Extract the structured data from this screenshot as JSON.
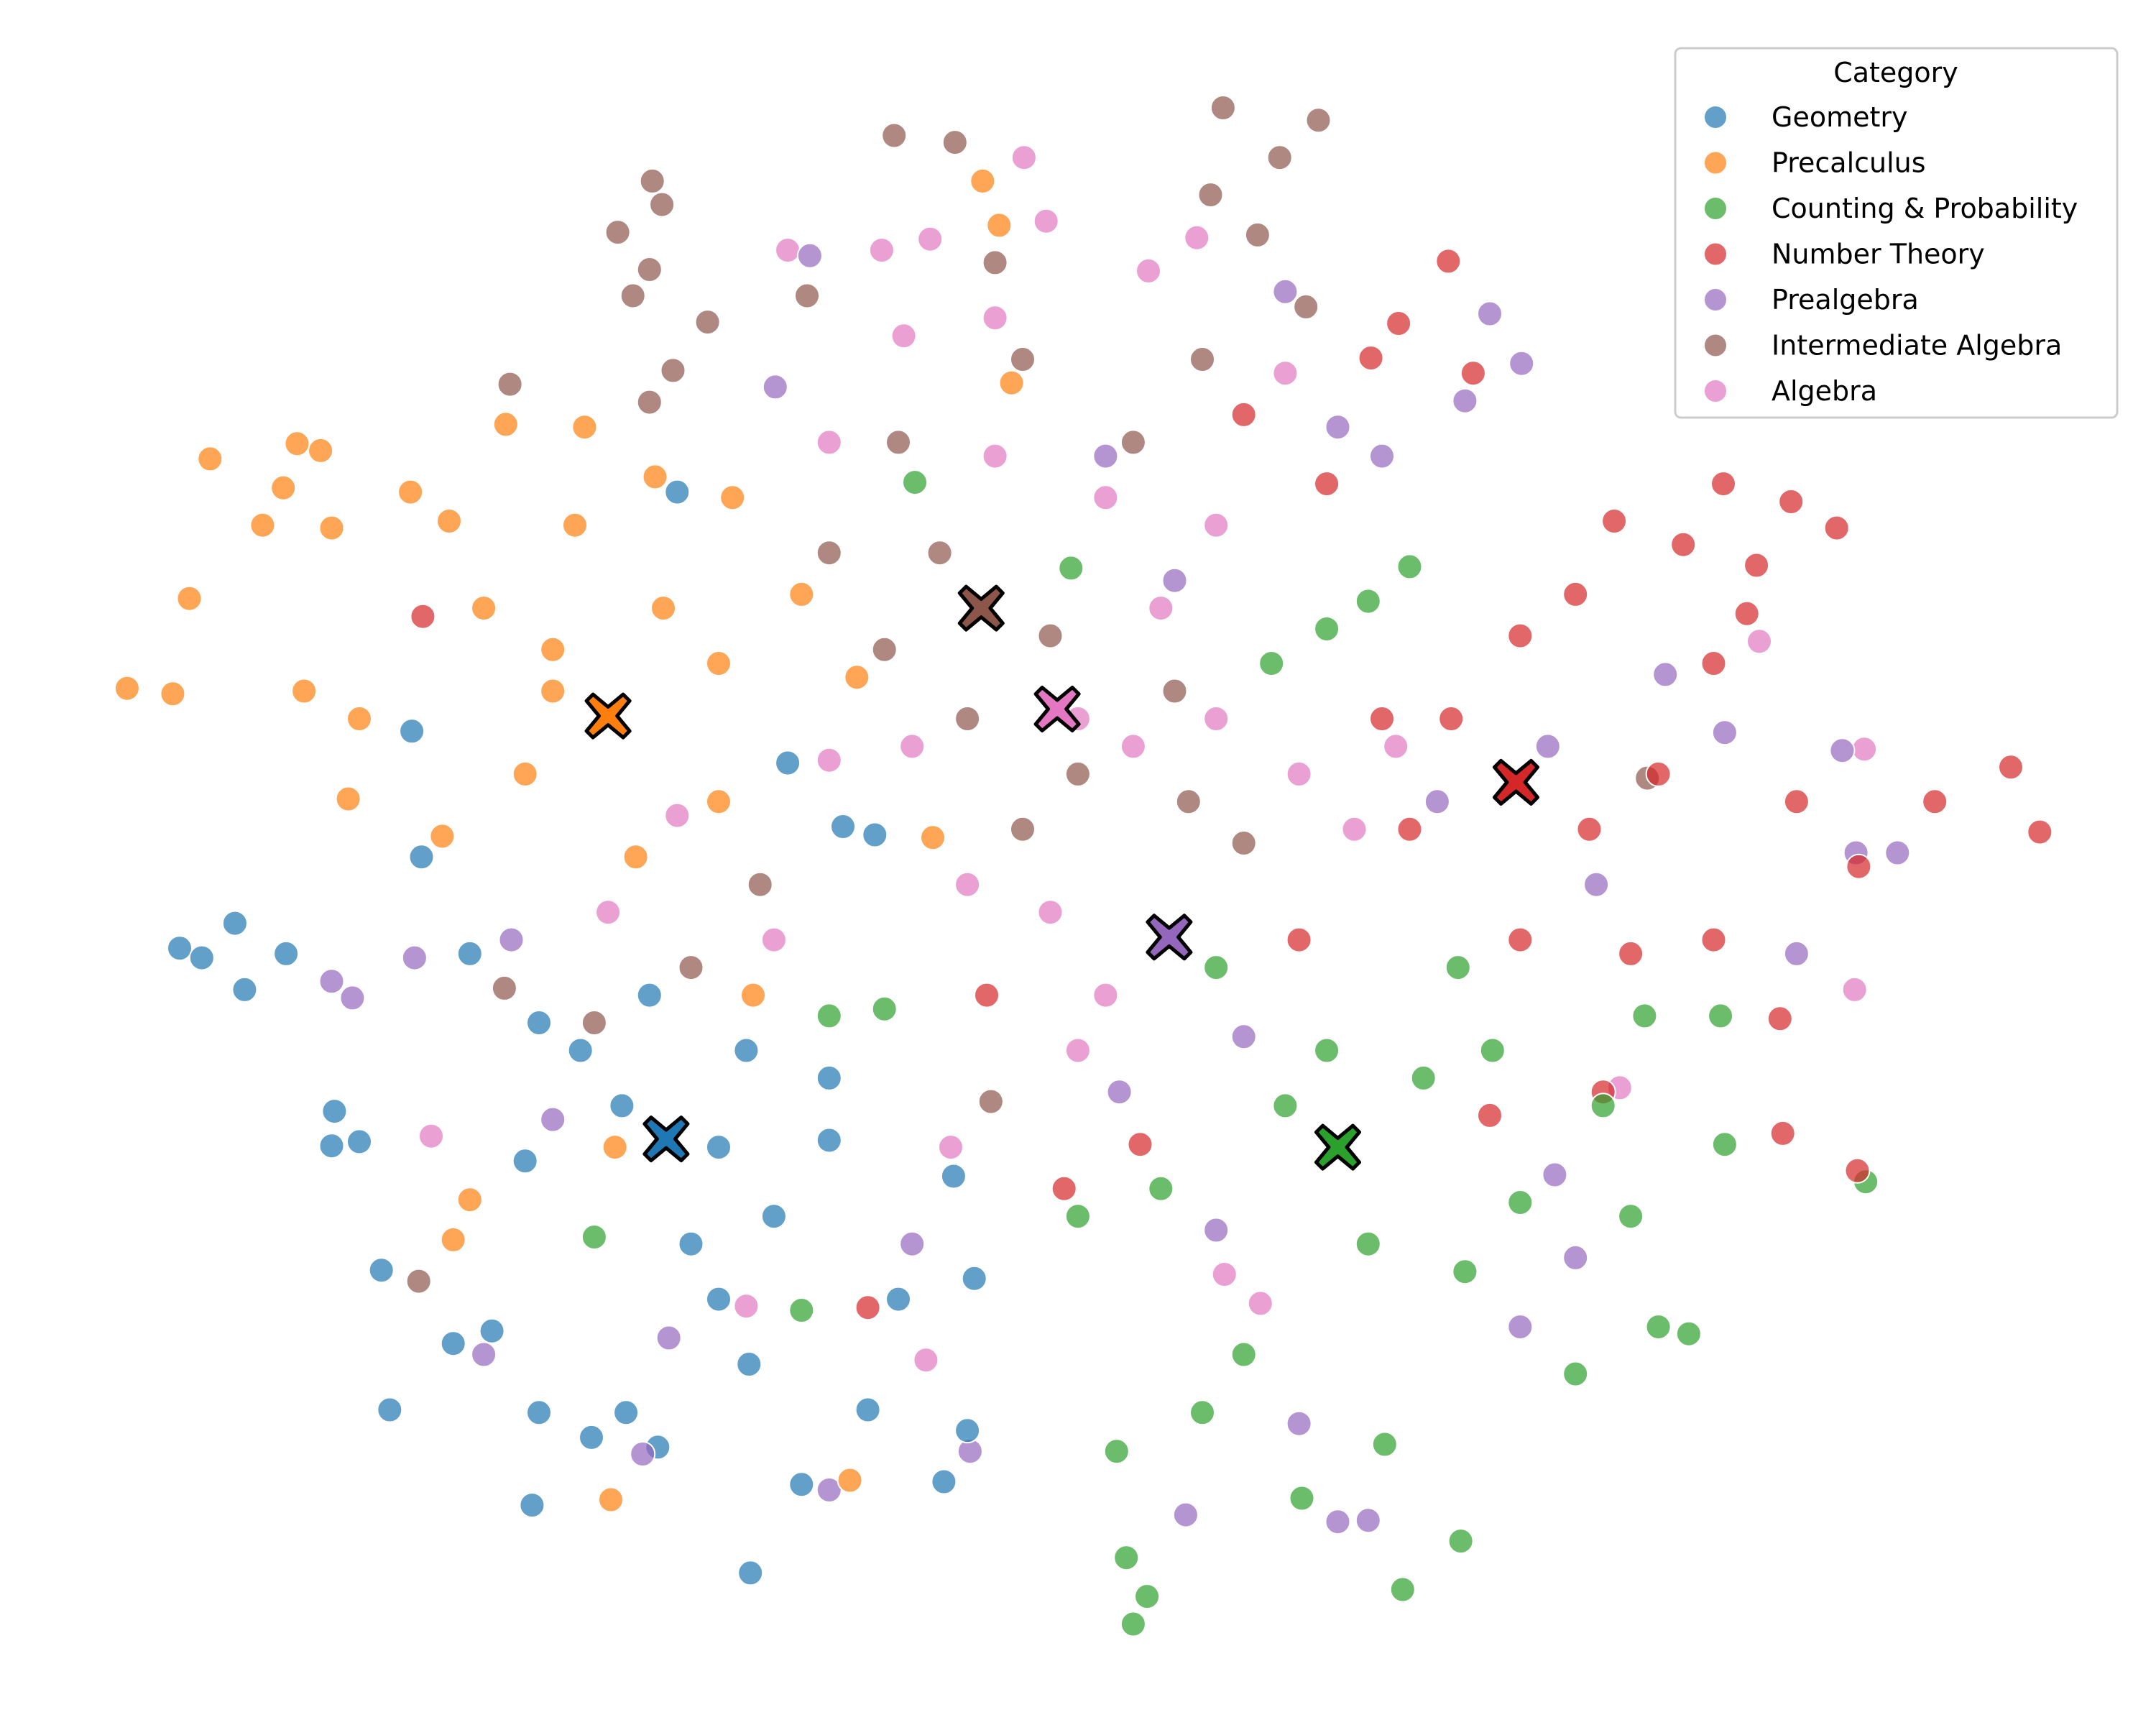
{
  "chart_data": {
    "type": "scatter",
    "title": "",
    "xlabel": "",
    "ylabel": "",
    "axes_visible": false,
    "grid": false,
    "xlim": [
      -78,
      78
    ],
    "ylim": [
      -62,
      62
    ],
    "legend": {
      "title": "Category",
      "placement": "top-right"
    },
    "marker_alpha": 0.7,
    "centroid_marker": "X",
    "series": [
      {
        "name": "Geometry",
        "color": "#1f77b4",
        "centroid": [
          -29.8,
          -19.9
        ],
        "points": [
          [
            -65,
            -6.1
          ],
          [
            -63.4,
            -6.8
          ],
          [
            -61,
            -4.3
          ],
          [
            -60.3,
            -9.1
          ],
          [
            -57.3,
            -6.5
          ],
          [
            -54,
            -20.4
          ],
          [
            -53.8,
            -17.9
          ],
          [
            -52,
            -20.1
          ],
          [
            -50.4,
            -29.4
          ],
          [
            -49.8,
            -39.5
          ],
          [
            -47.5,
            0.5
          ],
          [
            -48.2,
            9.6
          ],
          [
            -45.2,
            -34.7
          ],
          [
            -42.4,
            -33.8
          ],
          [
            -39.5,
            -46.4
          ],
          [
            -39,
            -39.7
          ],
          [
            -35.2,
            -41.5
          ],
          [
            -32.7,
            -39.7
          ],
          [
            -30.4,
            -42.2
          ],
          [
            -23.7,
            -51.3
          ],
          [
            -23.8,
            -36.2
          ],
          [
            -21,
            7.3
          ],
          [
            -17,
            2.7
          ],
          [
            -14.7,
            2.1
          ],
          [
            -15.2,
            -39.5
          ],
          [
            -20,
            -44.9
          ],
          [
            -9.7,
            -44.7
          ],
          [
            -8,
            -41
          ],
          [
            -7.5,
            -30
          ],
          [
            -9,
            -22.6
          ],
          [
            -26,
            -20.5
          ],
          [
            -22,
            -25.5
          ],
          [
            -28,
            -27.5
          ],
          [
            -24,
            -13.5
          ],
          [
            -36,
            -13.5
          ],
          [
            -40,
            -21.5
          ],
          [
            -33,
            -17.5
          ],
          [
            -18,
            -15.5
          ],
          [
            -13,
            -31.5
          ],
          [
            -29,
            26.9
          ],
          [
            -44,
            -6.5
          ],
          [
            -39,
            -11.5
          ],
          [
            -31,
            -9.5
          ],
          [
            -26,
            -31.5
          ],
          [
            -18,
            -20
          ]
        ]
      },
      {
        "name": "Precalculus",
        "color": "#ff7f0e",
        "centroid": [
          -34,
          10.7
        ],
        "points": [
          [
            -68.8,
            12.7
          ],
          [
            -65.5,
            12.3
          ],
          [
            -64.3,
            19.2
          ],
          [
            -62.8,
            29.3
          ],
          [
            -59,
            24.5
          ],
          [
            -56.5,
            30.4
          ],
          [
            -54.8,
            29.9
          ],
          [
            -57.5,
            27.2
          ],
          [
            -54,
            24.3
          ],
          [
            -52.8,
            4.7
          ],
          [
            -48.3,
            26.9
          ],
          [
            -45.5,
            24.8
          ],
          [
            -41.4,
            31.8
          ],
          [
            -35.7,
            31.6
          ],
          [
            -36.4,
            24.5
          ],
          [
            -30.6,
            28
          ],
          [
            -25,
            26.5
          ],
          [
            -46,
            2
          ],
          [
            -44,
            -24.3
          ],
          [
            -45.2,
            -27.2
          ],
          [
            -33.8,
            -46
          ],
          [
            -33.5,
            -20.5
          ],
          [
            -23.5,
            -9.5
          ],
          [
            -6.9,
            49.4
          ],
          [
            -5.7,
            46.2
          ],
          [
            -4.8,
            34.8
          ],
          [
            -10.5,
            1.9
          ],
          [
            -16.5,
            -44.6
          ],
          [
            -43,
            18.5
          ],
          [
            -38,
            15.5
          ],
          [
            -30,
            18.5
          ],
          [
            -26,
            14.5
          ],
          [
            -20,
            19.5
          ],
          [
            -16,
            13.5
          ],
          [
            -52,
            10.5
          ],
          [
            -56,
            12.5
          ],
          [
            -40,
            6.5
          ],
          [
            -32,
            0.5
          ],
          [
            -26,
            4.5
          ],
          [
            -38,
            12.5
          ]
        ]
      },
      {
        "name": "Counting & Probability",
        "color": "#2ca02c",
        "centroid": [
          18.8,
          -20.5
        ],
        "points": [
          [
            4,
            -55
          ],
          [
            3.5,
            -50.2
          ],
          [
            5,
            -53
          ],
          [
            2.8,
            -42.5
          ],
          [
            9,
            -39.7
          ],
          [
            16.2,
            -45.9
          ],
          [
            23.5,
            -52.5
          ],
          [
            27.7,
            -49
          ],
          [
            22.2,
            -42
          ],
          [
            36,
            -36.9
          ],
          [
            44.2,
            -34
          ],
          [
            46.8,
            -20.3
          ],
          [
            57,
            -23
          ],
          [
            46.5,
            -11
          ],
          [
            41,
            -11
          ],
          [
            24,
            21.5
          ],
          [
            21,
            19
          ],
          [
            18,
            17
          ],
          [
            14,
            14.5
          ],
          [
            -11.8,
            27.6
          ],
          [
            -0.5,
            21.4
          ],
          [
            -18,
            -11
          ],
          [
            -14,
            -10.5
          ],
          [
            -35,
            -27
          ],
          [
            -20,
            -32.3
          ],
          [
            0,
            -25.5
          ],
          [
            6,
            -23.5
          ],
          [
            12,
            -35.5
          ],
          [
            21,
            -27.5
          ],
          [
            28,
            -29.5
          ],
          [
            32,
            -24.5
          ],
          [
            30,
            -13.5
          ],
          [
            25,
            -15.5
          ],
          [
            18,
            -13.5
          ],
          [
            38,
            -17.5
          ],
          [
            42,
            -33.5
          ],
          [
            27.5,
            -7.5
          ],
          [
            40,
            -25.5
          ],
          [
            15,
            -17.5
          ],
          [
            10,
            -7.5
          ]
        ]
      },
      {
        "name": "Number Theory",
        "color": "#d62728",
        "centroid": [
          31.7,
          5.9
        ],
        "points": [
          [
            26.8,
            43.6
          ],
          [
            23.2,
            39.1
          ],
          [
            21.2,
            36.6
          ],
          [
            28.6,
            35.5
          ],
          [
            46.7,
            27.5
          ],
          [
            51.6,
            26.2
          ],
          [
            54.9,
            24.3
          ],
          [
            38.8,
            24.8
          ],
          [
            43.8,
            23.1
          ],
          [
            49.1,
            21.6
          ],
          [
            48.4,
            18.1
          ],
          [
            69.6,
            2.3
          ],
          [
            67.5,
            7
          ],
          [
            62,
            4.5
          ],
          [
            56.5,
            -0.2
          ],
          [
            51,
            -19.5
          ],
          [
            50.8,
            -11.2
          ],
          [
            56.4,
            -22.2
          ],
          [
            38,
            -16.5
          ],
          [
            29.8,
            -18.2
          ],
          [
            4.5,
            -20.3
          ],
          [
            -1,
            -23.5
          ],
          [
            -47.4,
            17.9
          ],
          [
            -15.2,
            -32.1
          ],
          [
            -6.6,
            -9.5
          ],
          [
            32,
            16.5
          ],
          [
            27,
            10.5
          ],
          [
            22,
            10.5
          ],
          [
            37,
            2.5
          ],
          [
            42,
            6.5
          ],
          [
            46,
            -5.5
          ],
          [
            40,
            -6.5
          ],
          [
            32,
            -5.5
          ],
          [
            24,
            2.5
          ],
          [
            18,
            27.5
          ],
          [
            12,
            32.5
          ],
          [
            52,
            4.5
          ],
          [
            46,
            14.5
          ],
          [
            36,
            19.5
          ],
          [
            16,
            -5.5
          ]
        ]
      },
      {
        "name": "Prealgebra",
        "color": "#9467bd",
        "centroid": [
          6.6,
          -5.3
        ],
        "points": [
          [
            29.8,
            39.8
          ],
          [
            32.1,
            36.2
          ],
          [
            28,
            33.5
          ],
          [
            22,
            29.5
          ],
          [
            18.8,
            31.6
          ],
          [
            15,
            41.4
          ],
          [
            -19.4,
            44
          ],
          [
            -21.9,
            34.5
          ],
          [
            56.3,
            0.8
          ],
          [
            59.3,
            0.8
          ],
          [
            52,
            -6.5
          ],
          [
            55.3,
            8.2
          ],
          [
            46.8,
            9.5
          ],
          [
            42.5,
            13.7
          ],
          [
            37.5,
            -1.5
          ],
          [
            34,
            8.5
          ],
          [
            26,
            4.5
          ],
          [
            -54,
            -8.5
          ],
          [
            -52.5,
            -9.7
          ],
          [
            -48,
            -6.8
          ],
          [
            -43,
            -35.5
          ],
          [
            -29.6,
            -34.3
          ],
          [
            -31.5,
            -42.7
          ],
          [
            -18,
            -45.3
          ],
          [
            -7.8,
            -42.5
          ],
          [
            7.8,
            -47.1
          ],
          [
            18.8,
            -47.6
          ],
          [
            21,
            -47.5
          ],
          [
            16,
            -40.5
          ],
          [
            32,
            -33.5
          ],
          [
            36,
            -28.5
          ],
          [
            34.5,
            -22.5
          ],
          [
            3,
            -16.5
          ],
          [
            12,
            -12.5
          ],
          [
            10,
            -26.5
          ],
          [
            -12,
            -27.5
          ],
          [
            -38,
            -18.5
          ],
          [
            -41,
            -5.5
          ],
          [
            2,
            29.5
          ],
          [
            7,
            20.5
          ]
        ]
      },
      {
        "name": "Intermediate Algebra",
        "color": "#8c564b",
        "centroid": [
          -7,
          18.5
        ],
        "points": [
          [
            10.5,
            54.7
          ],
          [
            17.4,
            53.8
          ],
          [
            14.6,
            51.1
          ],
          [
            -13.3,
            52.7
          ],
          [
            -8.9,
            52.2
          ],
          [
            -30.8,
            49.4
          ],
          [
            -30.1,
            47.7
          ],
          [
            -33.3,
            45.7
          ],
          [
            -31,
            43
          ],
          [
            -32.2,
            41.1
          ],
          [
            -41.1,
            34.7
          ],
          [
            -29.3,
            35.7
          ],
          [
            -31,
            33.4
          ],
          [
            -26.8,
            39.2
          ],
          [
            -19.6,
            41.1
          ],
          [
            9.6,
            48.4
          ],
          [
            13,
            45.5
          ],
          [
            16.5,
            40.3
          ],
          [
            -47.7,
            -30.2
          ],
          [
            -41.5,
            -9
          ],
          [
            -6.3,
            -17.2
          ],
          [
            41.2,
            6.2
          ],
          [
            -6,
            43.5
          ],
          [
            -4,
            36.5
          ],
          [
            -13,
            30.5
          ],
          [
            -18,
            22.5
          ],
          [
            -14,
            15.5
          ],
          [
            -8,
            10.5
          ],
          [
            0,
            6.5
          ],
          [
            -4,
            2.5
          ],
          [
            8,
            4.5
          ],
          [
            12,
            1.5
          ],
          [
            7,
            12.5
          ],
          [
            9,
            36.5
          ],
          [
            4,
            30.5
          ],
          [
            -23,
            -1.5
          ],
          [
            -28,
            -7.5
          ],
          [
            -35,
            -11.5
          ],
          [
            -10,
            22.5
          ],
          [
            -2,
            16.5
          ]
        ]
      },
      {
        "name": "Algebra",
        "color": "#e377c2",
        "centroid": [
          -1.5,
          11.2
        ],
        "points": [
          [
            -3.9,
            51.1
          ],
          [
            -2.3,
            46.5
          ],
          [
            -21,
            44.4
          ],
          [
            -14.2,
            44.4
          ],
          [
            -10.7,
            45.2
          ],
          [
            5.1,
            42.9
          ],
          [
            8.6,
            45.3
          ],
          [
            49.3,
            16.1
          ],
          [
            56.9,
            8.3
          ],
          [
            56.2,
            -9.1
          ],
          [
            39.2,
            -16.2
          ],
          [
            -46.8,
            -19.7
          ],
          [
            -24,
            -32
          ],
          [
            -11,
            -35.9
          ],
          [
            -9.2,
            -20.5
          ],
          [
            10.6,
            -29.7
          ],
          [
            13.2,
            -31.8
          ],
          [
            -12.6,
            38.2
          ],
          [
            -18,
            30.5
          ],
          [
            -6,
            29.5
          ],
          [
            2,
            26.5
          ],
          [
            10,
            24.5
          ],
          [
            6,
            18.5
          ],
          [
            0,
            10.5
          ],
          [
            -12,
            8.5
          ],
          [
            -18,
            7.5
          ],
          [
            -8,
            -1.5
          ],
          [
            -2,
            -3.5
          ],
          [
            0,
            -13.5
          ],
          [
            2,
            -9.5
          ],
          [
            16,
            6.5
          ],
          [
            20,
            2.5
          ],
          [
            23,
            8.5
          ],
          [
            -34,
            -3.5
          ],
          [
            -29,
            3.5
          ],
          [
            -22,
            -5.5
          ],
          [
            10,
            10.5
          ],
          [
            4,
            8.5
          ],
          [
            15,
            35.5
          ],
          [
            -6,
            39.5
          ]
        ]
      }
    ]
  }
}
